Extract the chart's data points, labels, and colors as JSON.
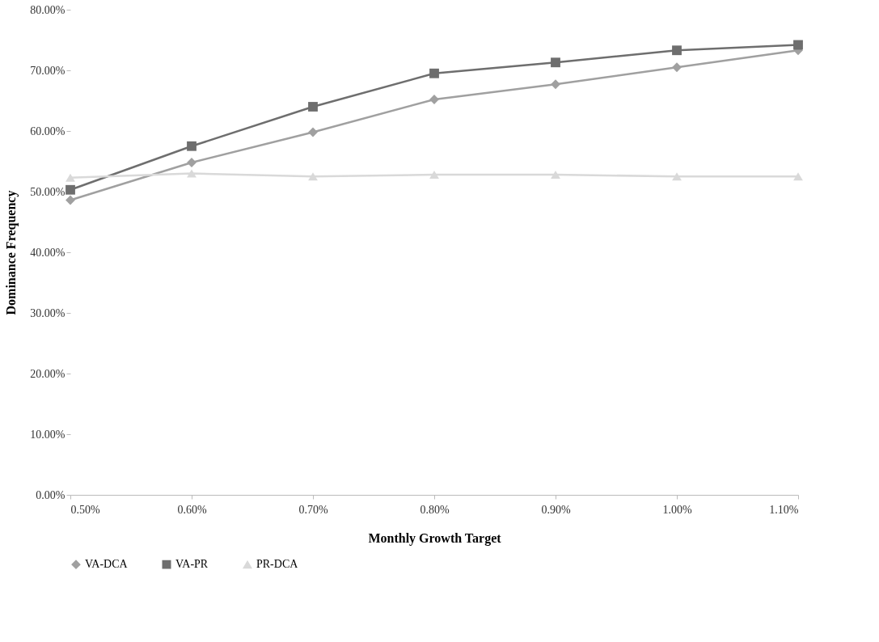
{
  "chart_data": {
    "type": "line",
    "xlabel": "Monthly Growth Target",
    "ylabel": "Dominance Frequency",
    "categories": [
      "0.50%",
      "0.60%",
      "0.70%",
      "0.80%",
      "0.90%",
      "1.00%",
      "1.10%"
    ],
    "series": [
      {
        "name": "VA-DCA",
        "color": "#a0a0a0",
        "marker": "diamond",
        "values": [
          48.6,
          54.8,
          59.8,
          65.2,
          67.7,
          70.5,
          73.3
        ]
      },
      {
        "name": "VA-PR",
        "color": "#6e6e6e",
        "marker": "square",
        "values": [
          50.3,
          57.5,
          64.0,
          69.5,
          71.3,
          73.3,
          74.2
        ]
      },
      {
        "name": "PR-DCA",
        "color": "#d9d9d9",
        "marker": "triangle",
        "values": [
          52.3,
          53.0,
          52.5,
          52.8,
          52.8,
          52.5,
          52.5
        ]
      }
    ],
    "ylim": [
      0,
      80
    ],
    "yticks": [
      {
        "value": 0,
        "label": "0.00%"
      },
      {
        "value": 10,
        "label": "10.00%"
      },
      {
        "value": 20,
        "label": "20.00%"
      },
      {
        "value": 30,
        "label": "30.00%"
      },
      {
        "value": 40,
        "label": "40.00%"
      },
      {
        "value": 50,
        "label": "50.00%"
      },
      {
        "value": 60,
        "label": "60.00%"
      },
      {
        "value": 70,
        "label": "70.00%"
      },
      {
        "value": 80,
        "label": "80.00%"
      }
    ],
    "grid": false,
    "legend": "bottom",
    "line_style": "solid"
  }
}
